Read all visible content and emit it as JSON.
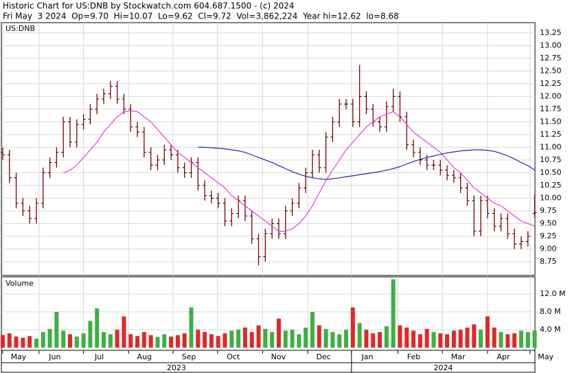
{
  "chart_data": {
    "type": "ohlc",
    "header": [
      "Historic Chart for US:DNB by Stockwatch.com 604.687.1500 - (c) 2024",
      "Fri May  3 2024  Op=9.70  Hi=10.07  Lo=9.62  Cl=9.72  Vol=3,862,224  Year hi=12.62  lo=8.68"
    ],
    "symbol": "US:DNB",
    "volume_title": "Volume",
    "color": "#7a0000",
    "ma50_color": "#e040d0",
    "ma200_color": "#1a2aa8",
    "up_color": "#3cb043",
    "down_color": "#e02828",
    "grid": true,
    "xlim": [
      -0.2,
      79.05
    ],
    "xticks": [
      {
        "value": 0,
        "label": "May"
      },
      {
        "value": 5.4,
        "label": "Jun"
      },
      {
        "value": 12.0,
        "label": "Jul"
      },
      {
        "value": 18.7,
        "label": "Aug"
      },
      {
        "value": 25.3,
        "label": "Sep"
      },
      {
        "value": 31.9,
        "label": "Oct"
      },
      {
        "value": 38.6,
        "label": "Nov"
      },
      {
        "value": 45.3,
        "label": "Dec"
      },
      {
        "value": 51.8,
        "label": "Jan"
      },
      {
        "value": 58.7,
        "label": "Feb"
      },
      {
        "value": 65.3,
        "label": "Mar"
      },
      {
        "value": 72,
        "label": "Apr"
      },
      {
        "value": 78.3,
        "label": "May"
      }
    ],
    "year_labels": [
      {
        "label": "2023",
        "from": -0.2,
        "to": 51.8
      },
      {
        "label": "2024",
        "from": 51.8,
        "to": 79.05
      }
    ],
    "ylim": [
      8.48,
      13.45
    ],
    "yticks": [
      {
        "value": 8.75,
        "label": "8.75"
      },
      {
        "value": 9,
        "label": "9.00"
      },
      {
        "value": 9.25,
        "label": "9.25"
      },
      {
        "value": 9.5,
        "label": "9.50"
      },
      {
        "value": 9.75,
        "label": "9.75"
      },
      {
        "value": 10,
        "label": "10.00"
      },
      {
        "value": 10.25,
        "label": "10.25"
      },
      {
        "value": 10.5,
        "label": "10.50"
      },
      {
        "value": 10.75,
        "label": "10.75"
      },
      {
        "value": 11,
        "label": "11.00"
      },
      {
        "value": 11.25,
        "label": "11.25"
      },
      {
        "value": 11.5,
        "label": "11.50"
      },
      {
        "value": 11.75,
        "label": "11.75"
      },
      {
        "value": 12,
        "label": "12.00"
      },
      {
        "value": 12.25,
        "label": "12.25"
      },
      {
        "value": 12.5,
        "label": "12.50"
      },
      {
        "value": 12.75,
        "label": "12.75"
      },
      {
        "value": 13,
        "label": "13.00"
      },
      {
        "value": 13.25,
        "label": "13.25"
      }
    ],
    "vlim": [
      -0.6,
      15.85
    ],
    "vticks": [
      {
        "value": 4,
        "label": "4.0 M"
      },
      {
        "value": 8,
        "label": "8.0 M"
      },
      {
        "value": 12,
        "label": "12.0 M"
      }
    ],
    "open": [
      10.9,
      10.85,
      10.4,
      9.9,
      9.75,
      9.6,
      9.9,
      10.5,
      10.7,
      10.9,
      11.5,
      11.1,
      11.45,
      11.55,
      11.75,
      11.95,
      12.05,
      12.2,
      11.95,
      11.75,
      11.4,
      11.3,
      10.9,
      10.65,
      10.75,
      10.95,
      10.85,
      10.6,
      10.5,
      10.7,
      10.25,
      10.05,
      10.0,
      9.9,
      9.55,
      9.7,
      9.95,
      9.65,
      9.2,
      8.85,
      9.3,
      9.5,
      9.3,
      9.75,
      9.9,
      10.2,
      10.5,
      10.85,
      10.6,
      11.2,
      11.5,
      11.85,
      11.85,
      11.5,
      12.0,
      11.75,
      11.5,
      11.4,
      11.8,
      12.0,
      11.6,
      11.05,
      10.9,
      10.75,
      10.65,
      10.65,
      10.55,
      10.45,
      10.4,
      10.2,
      9.95,
      9.35,
      9.95,
      9.7,
      9.45,
      9.6,
      9.3,
      9.1,
      9.15,
      9.7
    ],
    "high": [
      11.0,
      10.95,
      10.5,
      10.0,
      9.85,
      10.0,
      10.6,
      10.8,
      11.0,
      11.6,
      11.6,
      11.55,
      11.65,
      11.85,
      12.05,
      12.15,
      12.3,
      12.3,
      12.05,
      11.85,
      11.5,
      11.4,
      11.0,
      10.85,
      11.05,
      11.05,
      10.95,
      10.7,
      10.8,
      10.8,
      10.35,
      10.15,
      10.1,
      10.0,
      9.8,
      10.05,
      10.05,
      9.75,
      9.3,
      9.4,
      9.6,
      9.6,
      9.85,
      10.0,
      10.3,
      10.6,
      10.95,
      10.95,
      11.3,
      11.6,
      11.95,
      11.95,
      11.95,
      12.62,
      12.1,
      11.85,
      11.6,
      11.9,
      12.15,
      12.1,
      11.7,
      11.15,
      11.0,
      10.85,
      10.75,
      10.75,
      10.65,
      10.55,
      10.5,
      10.3,
      10.05,
      10.05,
      10.05,
      9.8,
      9.7,
      9.7,
      9.4,
      9.25,
      9.35,
      10.07
    ],
    "low": [
      10.75,
      10.3,
      9.8,
      9.65,
      9.5,
      9.5,
      9.8,
      10.4,
      10.6,
      10.8,
      11.0,
      11.0,
      11.35,
      11.45,
      11.65,
      11.85,
      11.95,
      11.85,
      11.65,
      11.3,
      11.2,
      10.8,
      10.55,
      10.55,
      10.65,
      10.75,
      10.5,
      10.4,
      10.4,
      10.15,
      9.95,
      9.9,
      9.8,
      9.45,
      9.45,
      9.6,
      9.55,
      9.1,
      8.68,
      8.75,
      9.2,
      9.2,
      9.2,
      9.65,
      9.8,
      10.1,
      10.4,
      10.5,
      10.5,
      11.1,
      11.4,
      11.75,
      11.4,
      11.4,
      11.65,
      11.4,
      11.3,
      11.3,
      11.7,
      11.5,
      10.95,
      10.8,
      10.65,
      10.55,
      10.55,
      10.45,
      10.35,
      10.3,
      10.1,
      9.85,
      9.25,
      9.25,
      9.6,
      9.35,
      9.35,
      9.2,
      9.0,
      9.0,
      9.05,
      9.62
    ],
    "close": [
      10.85,
      10.4,
      9.9,
      9.75,
      9.6,
      9.9,
      10.5,
      10.7,
      10.9,
      11.5,
      11.1,
      11.45,
      11.55,
      11.75,
      11.95,
      12.05,
      12.2,
      11.95,
      11.75,
      11.4,
      11.3,
      10.9,
      10.65,
      10.75,
      10.95,
      10.85,
      10.6,
      10.5,
      10.7,
      10.25,
      10.05,
      10.0,
      9.9,
      9.55,
      9.7,
      9.95,
      9.65,
      9.2,
      8.85,
      9.3,
      9.5,
      9.3,
      9.75,
      9.9,
      10.2,
      10.5,
      10.85,
      10.6,
      11.2,
      11.5,
      11.85,
      11.85,
      11.5,
      12.0,
      11.75,
      11.5,
      11.4,
      11.8,
      12.0,
      11.6,
      11.05,
      10.9,
      10.75,
      10.65,
      10.65,
      10.55,
      10.45,
      10.4,
      10.2,
      9.95,
      9.35,
      9.95,
      9.7,
      9.45,
      9.6,
      9.3,
      9.1,
      9.15,
      9.25,
      9.72
    ],
    "volume": [
      2.8,
      3.2,
      2.5,
      2.2,
      2.6,
      2.0,
      3.5,
      4.2,
      8.0,
      3.8,
      3.0,
      2.5,
      3.2,
      6.0,
      8.8,
      3.5,
      3.0,
      4.0,
      7.0,
      3.0,
      2.6,
      3.5,
      2.8,
      2.4,
      3.0,
      2.5,
      2.8,
      3.2,
      9.0,
      4.0,
      3.5,
      3.0,
      2.6,
      3.2,
      3.8,
      4.0,
      4.5,
      3.5,
      5.0,
      4.2,
      3.5,
      6.5,
      3.8,
      4.0,
      3.0,
      4.5,
      8.0,
      5.0,
      4.2,
      3.5,
      3.0,
      4.0,
      9.0,
      5.5,
      4.0,
      3.2,
      3.5,
      4.8,
      15.3,
      5.0,
      4.5,
      3.8,
      3.0,
      4.2,
      3.5,
      3.2,
      3.0,
      3.8,
      4.0,
      4.5,
      5.2,
      4.0,
      7.0,
      4.5,
      3.5,
      3.0,
      3.2,
      3.8,
      3.5,
      3.862224
    ],
    "ma50": [
      null,
      null,
      null,
      null,
      null,
      null,
      null,
      null,
      null,
      10.5,
      10.55,
      10.65,
      10.8,
      10.95,
      11.1,
      11.3,
      11.45,
      11.6,
      11.7,
      11.72,
      11.7,
      11.6,
      11.5,
      11.35,
      11.2,
      11.05,
      10.9,
      10.8,
      10.7,
      10.6,
      10.5,
      10.4,
      10.3,
      10.2,
      10.05,
      9.95,
      9.85,
      9.75,
      9.65,
      9.55,
      9.45,
      9.35,
      9.35,
      9.4,
      9.5,
      9.65,
      9.85,
      10.1,
      10.35,
      10.55,
      10.75,
      10.95,
      11.1,
      11.25,
      11.4,
      11.5,
      11.6,
      11.65,
      11.7,
      11.6,
      11.45,
      11.3,
      11.2,
      11.1,
      11.0,
      10.9,
      10.75,
      10.6,
      10.5,
      10.35,
      10.2,
      10.1,
      10.0,
      9.9,
      9.85,
      9.75,
      9.65,
      9.55,
      9.5,
      9.45
    ],
    "ma200": [
      null,
      null,
      null,
      null,
      null,
      null,
      null,
      null,
      null,
      null,
      null,
      null,
      null,
      null,
      null,
      null,
      null,
      null,
      null,
      null,
      null,
      null,
      null,
      null,
      null,
      null,
      null,
      null,
      null,
      11.0,
      11.0,
      10.99,
      10.98,
      10.97,
      10.95,
      10.93,
      10.9,
      10.85,
      10.8,
      10.75,
      10.7,
      10.64,
      10.58,
      10.52,
      10.47,
      10.43,
      10.4,
      10.38,
      10.37,
      10.38,
      10.4,
      10.42,
      10.44,
      10.46,
      10.48,
      10.5,
      10.52,
      10.55,
      10.58,
      10.62,
      10.67,
      10.72,
      10.76,
      10.8,
      10.83,
      10.86,
      10.89,
      10.91,
      10.93,
      10.94,
      10.95,
      10.95,
      10.94,
      10.92,
      10.88,
      10.83,
      10.77,
      10.7,
      10.64,
      10.55
    ]
  }
}
